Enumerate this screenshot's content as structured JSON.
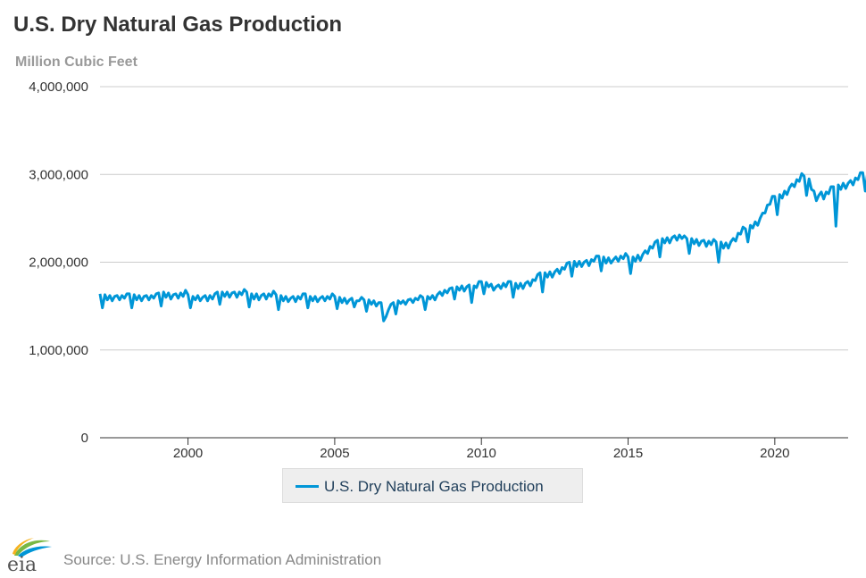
{
  "header": {
    "title": "U.S. Dry Natural Gas Production",
    "subtitle": "Million Cubic Feet"
  },
  "footer": {
    "logo_text": "eia",
    "source": "Source: U.S. Energy Information Administration"
  },
  "colors": {
    "series": "#0096d7",
    "grid": "#cccccc",
    "axis": "#333333",
    "legend_bg": "#eeeeee",
    "legend_text": "#1f3e5a"
  },
  "chart_data": {
    "type": "line",
    "title": "U.S. Dry Natural Gas Production",
    "ylabel": "Million Cubic Feet",
    "xlabel": "",
    "ylim": [
      0,
      4000000
    ],
    "xlim": [
      "1997-01",
      "2022-06"
    ],
    "y_ticks": [
      "0",
      "1,000,000",
      "2,000,000",
      "3,000,000",
      "4,000,000"
    ],
    "y_tick_values": [
      0,
      1000000,
      2000000,
      3000000,
      4000000
    ],
    "x_ticks": [
      "2000",
      "2005",
      "2010",
      "2015",
      "2020"
    ],
    "x_tick_values": [
      2000,
      2005,
      2010,
      2015,
      2020
    ],
    "grid": "horizontal",
    "legend": "bottom-center",
    "frequency": "monthly",
    "series": [
      {
        "name": "U.S. Dry Natural Gas Production",
        "start": "1997-01",
        "values": [
          1640000,
          1480000,
          1630000,
          1570000,
          1620000,
          1560000,
          1610000,
          1620000,
          1570000,
          1620000,
          1590000,
          1640000,
          1640000,
          1480000,
          1630000,
          1570000,
          1620000,
          1560000,
          1610000,
          1620000,
          1570000,
          1620000,
          1590000,
          1640000,
          1650000,
          1500000,
          1660000,
          1600000,
          1650000,
          1580000,
          1630000,
          1640000,
          1590000,
          1650000,
          1610000,
          1680000,
          1630000,
          1480000,
          1610000,
          1570000,
          1620000,
          1560000,
          1600000,
          1620000,
          1560000,
          1620000,
          1580000,
          1640000,
          1660000,
          1520000,
          1660000,
          1610000,
          1660000,
          1600000,
          1650000,
          1660000,
          1600000,
          1660000,
          1630000,
          1690000,
          1660000,
          1490000,
          1640000,
          1580000,
          1640000,
          1570000,
          1620000,
          1640000,
          1580000,
          1640000,
          1610000,
          1670000,
          1630000,
          1460000,
          1620000,
          1560000,
          1610000,
          1550000,
          1590000,
          1610000,
          1550000,
          1610000,
          1580000,
          1640000,
          1640000,
          1480000,
          1610000,
          1560000,
          1610000,
          1550000,
          1590000,
          1610000,
          1560000,
          1610000,
          1580000,
          1640000,
          1610000,
          1470000,
          1600000,
          1540000,
          1590000,
          1530000,
          1570000,
          1590000,
          1490000,
          1560000,
          1560000,
          1600000,
          1570000,
          1440000,
          1570000,
          1520000,
          1560000,
          1500000,
          1540000,
          1540000,
          1330000,
          1380000,
          1460000,
          1520000,
          1540000,
          1410000,
          1560000,
          1530000,
          1560000,
          1520000,
          1570000,
          1580000,
          1540000,
          1590000,
          1570000,
          1620000,
          1600000,
          1460000,
          1610000,
          1580000,
          1620000,
          1570000,
          1630000,
          1660000,
          1620000,
          1680000,
          1650000,
          1700000,
          1710000,
          1580000,
          1720000,
          1680000,
          1730000,
          1670000,
          1720000,
          1740000,
          1540000,
          1730000,
          1710000,
          1780000,
          1780000,
          1640000,
          1770000,
          1720000,
          1750000,
          1680000,
          1720000,
          1740000,
          1700000,
          1760000,
          1720000,
          1780000,
          1780000,
          1600000,
          1760000,
          1700000,
          1760000,
          1700000,
          1760000,
          1780000,
          1730000,
          1800000,
          1790000,
          1860000,
          1880000,
          1660000,
          1880000,
          1830000,
          1890000,
          1830000,
          1890000,
          1920000,
          1870000,
          1940000,
          1920000,
          1990000,
          2000000,
          1840000,
          2010000,
          1950000,
          2010000,
          1950000,
          2000000,
          2020000,
          1960000,
          2030000,
          2010000,
          2070000,
          2070000,
          1900000,
          2060000,
          1990000,
          2050000,
          1990000,
          2030000,
          2060000,
          2010000,
          2070000,
          2040000,
          2100000,
          2060000,
          1870000,
          2060000,
          2010000,
          2080000,
          2020000,
          2090000,
          2130000,
          2100000,
          2180000,
          2160000,
          2230000,
          2250000,
          2060000,
          2270000,
          2220000,
          2280000,
          2220000,
          2280000,
          2300000,
          2250000,
          2310000,
          2270000,
          2300000,
          2270000,
          2100000,
          2270000,
          2210000,
          2260000,
          2190000,
          2240000,
          2250000,
          2180000,
          2240000,
          2200000,
          2260000,
          2230000,
          2000000,
          2230000,
          2160000,
          2220000,
          2160000,
          2230000,
          2270000,
          2240000,
          2330000,
          2320000,
          2400000,
          2380000,
          2230000,
          2420000,
          2390000,
          2460000,
          2420000,
          2500000,
          2560000,
          2560000,
          2650000,
          2660000,
          2750000,
          2750000,
          2540000,
          2770000,
          2730000,
          2810000,
          2770000,
          2850000,
          2890000,
          2860000,
          2940000,
          2920000,
          3010000,
          2980000,
          2760000,
          2950000,
          2830000,
          2810000,
          2700000,
          2760000,
          2800000,
          2720000,
          2800000,
          2780000,
          2860000,
          2860000,
          2410000,
          2880000,
          2830000,
          2900000,
          2840000,
          2900000,
          2930000,
          2880000,
          2960000,
          2940000,
          3020000,
          3020000,
          2810000,
          3030000,
          2950000,
          3010000,
          2650000,
          3010000,
          3050000,
          3020000,
          3060000
        ]
      }
    ]
  },
  "legend": {
    "label": "U.S. Dry Natural Gas Production"
  }
}
